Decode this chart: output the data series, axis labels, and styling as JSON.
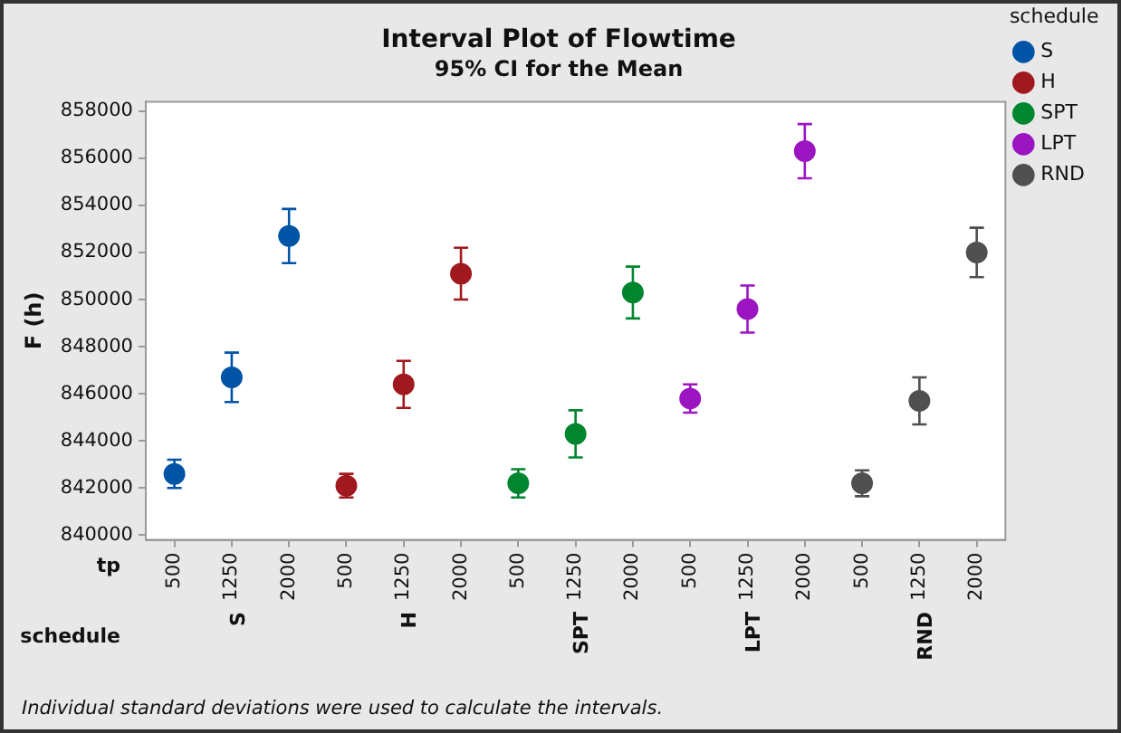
{
  "chart_data": {
    "type": "scatter",
    "title": "Interval Plot of Flowtime",
    "subtitle": "95% CI for the Mean",
    "ylabel": "F (h)",
    "legend_title": "schedule",
    "legend": "right",
    "grid": false,
    "categories": [
      "500",
      "1250",
      "2000",
      "500",
      "1250",
      "2000",
      "500",
      "1250",
      "2000",
      "500",
      "1250",
      "2000",
      "500",
      "1250",
      "2000"
    ],
    "ylim": [
      839800,
      858400
    ],
    "yticks": [
      840000,
      842000,
      844000,
      846000,
      848000,
      850000,
      852000,
      854000,
      856000,
      858000
    ],
    "annotations": [
      "tp",
      "schedule",
      "Individual standard deviations were used to calculate the intervals."
    ],
    "series": [
      {
        "name": "S",
        "color": "#0054a6",
        "values": [
          842600,
          846700,
          852700,
          null,
          null,
          null,
          null,
          null,
          null,
          null,
          null,
          null,
          null,
          null,
          null
        ],
        "errors": [
          600,
          1050,
          1150,
          null,
          null,
          null,
          null,
          null,
          null,
          null,
          null,
          null,
          null,
          null,
          null
        ]
      },
      {
        "name": "H",
        "color": "#a0191e",
        "values": [
          null,
          null,
          null,
          842100,
          846400,
          851100,
          null,
          null,
          null,
          null,
          null,
          null,
          null,
          null,
          null
        ],
        "errors": [
          null,
          null,
          null,
          500,
          1000,
          1100,
          null,
          null,
          null,
          null,
          null,
          null,
          null,
          null,
          null
        ]
      },
      {
        "name": "SPT",
        "color": "#00862f",
        "values": [
          null,
          null,
          null,
          null,
          null,
          null,
          842200,
          844300,
          850300,
          null,
          null,
          null,
          null,
          null,
          null
        ],
        "errors": [
          null,
          null,
          null,
          null,
          null,
          null,
          600,
          1000,
          1100,
          null,
          null,
          null,
          null,
          null,
          null
        ]
      },
      {
        "name": "LPT",
        "color": "#9b15c0",
        "values": [
          null,
          null,
          null,
          null,
          null,
          null,
          null,
          null,
          null,
          845800,
          849600,
          856300,
          null,
          null,
          null
        ],
        "errors": [
          null,
          null,
          null,
          null,
          null,
          null,
          null,
          null,
          null,
          600,
          1000,
          1150,
          null,
          null,
          null
        ]
      },
      {
        "name": "RND",
        "color": "#505050",
        "values": [
          null,
          null,
          null,
          null,
          null,
          null,
          null,
          null,
          null,
          null,
          null,
          null,
          842200,
          845700,
          852000
        ],
        "errors": [
          null,
          null,
          null,
          null,
          null,
          null,
          null,
          null,
          null,
          null,
          null,
          null,
          550,
          1000,
          1050
        ]
      }
    ]
  }
}
